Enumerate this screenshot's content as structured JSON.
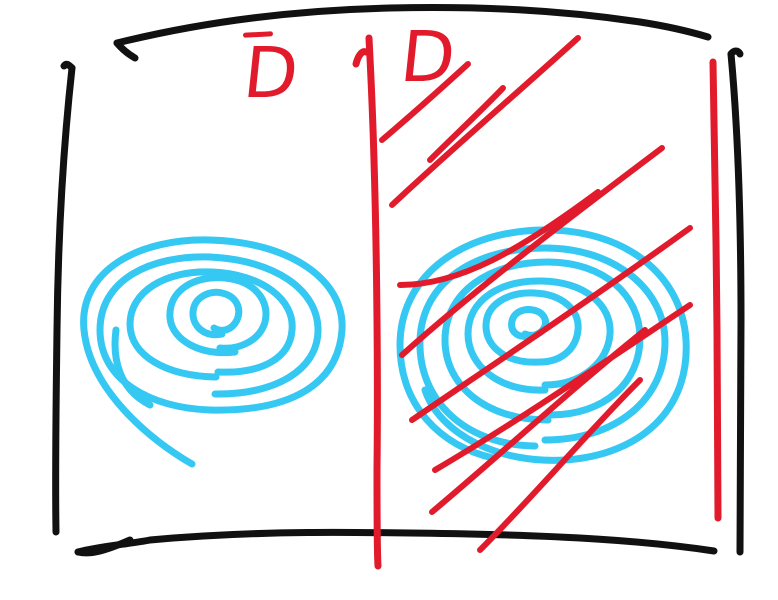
{
  "labels": {
    "left": "D",
    "right": "D"
  },
  "colors": {
    "frame": "#111111",
    "region": "#e11b2b",
    "contour": "#35c8f2"
  }
}
